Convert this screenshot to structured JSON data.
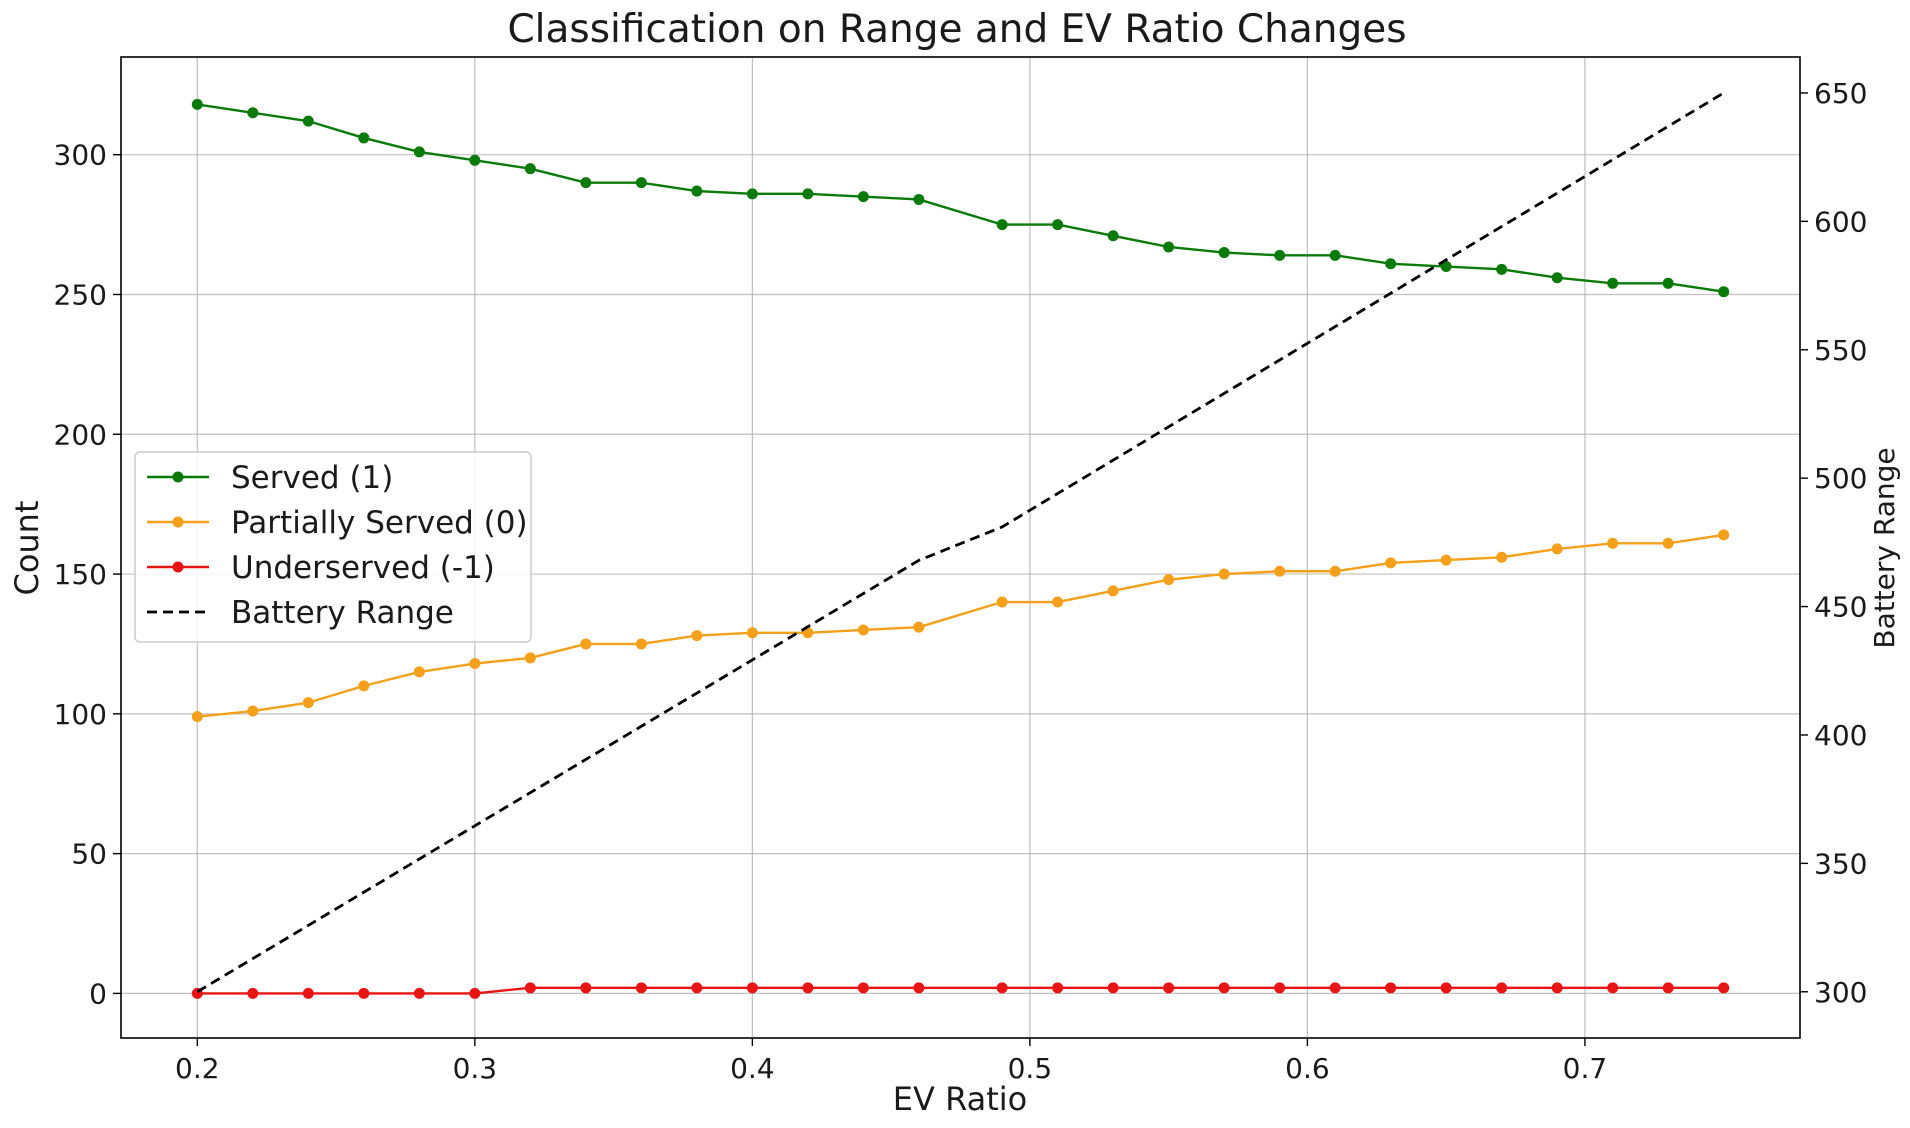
{
  "chart_data": {
    "type": "line",
    "title": "Classification on Range and EV Ratio Changes",
    "xlabel": "EV Ratio",
    "ylabel": "Count",
    "y2label": "Battery Range",
    "x": [
      0.2,
      0.22,
      0.24,
      0.26,
      0.28,
      0.3,
      0.32,
      0.34,
      0.36,
      0.38,
      0.4,
      0.42,
      0.44,
      0.46,
      0.49,
      0.51,
      0.53,
      0.55,
      0.57,
      0.59,
      0.61,
      0.63,
      0.65,
      0.67,
      0.69,
      0.71,
      0.73,
      0.75
    ],
    "xlim": [
      0.1725,
      0.7775
    ],
    "ylim": [
      -15.95,
      334.95
    ],
    "y2lim": [
      282,
      664
    ],
    "xticks": [
      "0.2",
      "0.3",
      "0.4",
      "0.5",
      "0.6",
      "0.7"
    ],
    "yticks": [
      "0",
      "50",
      "100",
      "150",
      "200",
      "250",
      "300"
    ],
    "y2ticks": [
      "300",
      "350",
      "400",
      "450",
      "500",
      "550",
      "600",
      "650"
    ],
    "grid": true,
    "legend_position": "center-left",
    "series": [
      {
        "name": "Served (1)",
        "axis": "left",
        "color": "#0a7a0a",
        "marker": "circle",
        "linestyle": "solid",
        "values": [
          318,
          315,
          312,
          306,
          301,
          298,
          295,
          290,
          290,
          287,
          286,
          286,
          285,
          284,
          275,
          275,
          271,
          267,
          265,
          264,
          264,
          261,
          260,
          259,
          256,
          254,
          254,
          251
        ]
      },
      {
        "name": "Partially Served (0)",
        "axis": "left",
        "color": "#f5a01a",
        "marker": "circle",
        "linestyle": "solid",
        "values": [
          99,
          101,
          104,
          110,
          115,
          118,
          120,
          125,
          125,
          128,
          129,
          129,
          130,
          131,
          140,
          140,
          144,
          148,
          150,
          151,
          151,
          154,
          155,
          156,
          159,
          161,
          161,
          164
        ]
      },
      {
        "name": "Underserved (-1)",
        "axis": "left",
        "color": "#e81515",
        "marker": "circle",
        "linestyle": "solid",
        "values": [
          0,
          0,
          0,
          0,
          0,
          0,
          2,
          2,
          2,
          2,
          2,
          2,
          2,
          2,
          2,
          2,
          2,
          2,
          2,
          2,
          2,
          2,
          2,
          2,
          2,
          2,
          2,
          2
        ]
      },
      {
        "name": "Battery Range",
        "axis": "right",
        "color": "#000000",
        "marker": "none",
        "linestyle": "dashed",
        "x": [
          0.2,
          0.46,
          0.49,
          0.75
        ],
        "values": [
          300,
          468,
          481,
          650
        ]
      }
    ]
  }
}
